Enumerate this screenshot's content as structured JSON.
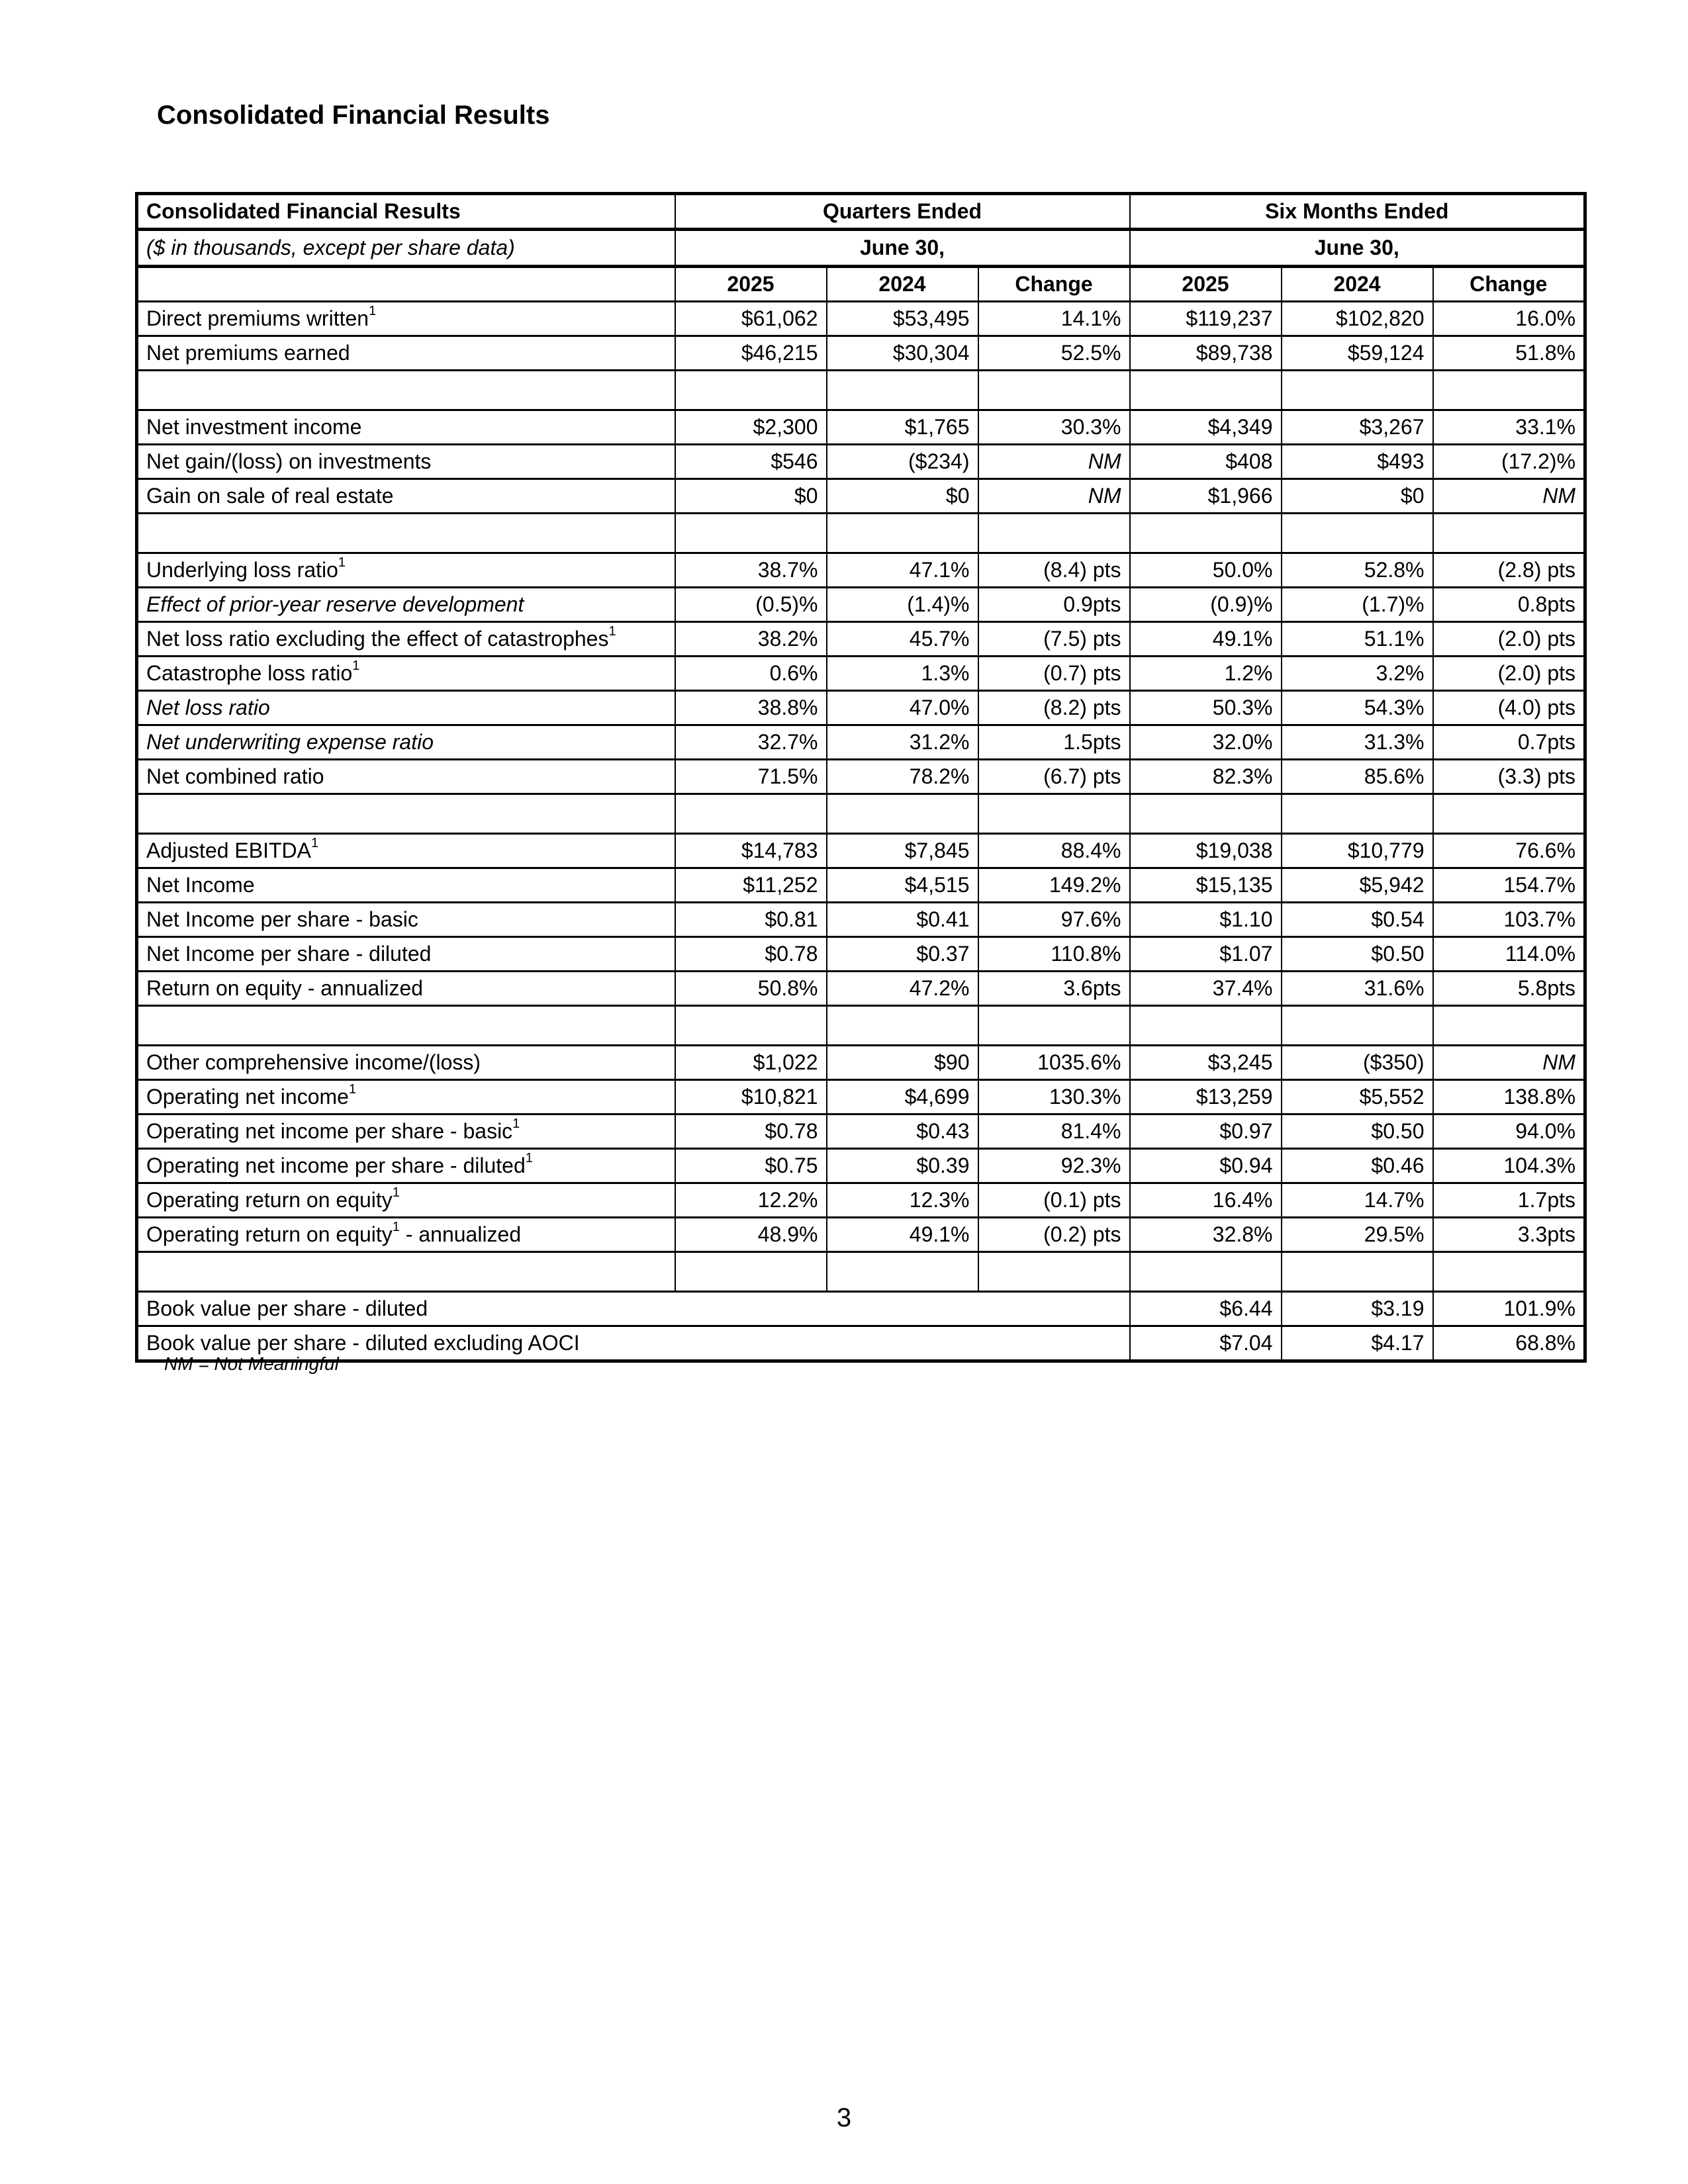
{
  "title": "Consolidated Financial Results",
  "table": {
    "header": {
      "label": "Consolidated Financial Results",
      "subtitle": "($ in thousands, except per share data)",
      "group_quarters": "Quarters Ended",
      "group_six_months": "Six Months Ended",
      "period_quarters": "June  30,",
      "period_six_months": "June  30,",
      "columns": [
        "2025",
        "2024",
        "Change",
        "2025",
        "2024",
        "Change"
      ]
    },
    "rows": [
      {
        "label": "Direct premiums written",
        "note": "1",
        "values": [
          "$61,062",
          "$53,495",
          "14.1%",
          "$119,237",
          "$102,820",
          "16.0%"
        ]
      },
      {
        "label": "Net premiums earned",
        "values": [
          "$46,215",
          "$30,304",
          "52.5%",
          "$89,738",
          "$59,124",
          "51.8%"
        ]
      },
      {
        "blank": true
      },
      {
        "label": "Net investment income",
        "values": [
          "$2,300",
          "$1,765",
          "30.3%",
          "$4,349",
          "$3,267",
          "33.1%"
        ]
      },
      {
        "label": "Net gain/(loss) on investments",
        "values": [
          "$546",
          "($234)",
          "NM",
          "$408",
          "$493",
          "(17.2)%"
        ]
      },
      {
        "label": "Gain on sale of real estate",
        "values": [
          "$0",
          "$0",
          "NM",
          "$1,966",
          "$0",
          "NM"
        ]
      },
      {
        "blank": true
      },
      {
        "label": "Underlying loss ratio",
        "note": "1",
        "values": [
          "38.7%",
          "47.1%",
          "(8.4) pts",
          "50.0%",
          "52.8%",
          "(2.8) pts"
        ]
      },
      {
        "label": "Effect of prior-year reserve development",
        "italic": true,
        "values": [
          "(0.5)%",
          "(1.4)%",
          "0.9pts",
          "(0.9)%",
          "(1.7)%",
          "0.8pts"
        ]
      },
      {
        "label": "Net loss ratio excluding the effect of catastrophes",
        "note": "1",
        "values": [
          "38.2%",
          "45.7%",
          "(7.5) pts",
          "49.1%",
          "51.1%",
          "(2.0) pts"
        ]
      },
      {
        "label": "Catastrophe loss ratio",
        "note": "1",
        "values": [
          "0.6%",
          "1.3%",
          "(0.7) pts",
          "1.2%",
          "3.2%",
          "(2.0) pts"
        ]
      },
      {
        "label": "Net loss ratio",
        "italic": true,
        "values": [
          "38.8%",
          "47.0%",
          "(8.2) pts",
          "50.3%",
          "54.3%",
          "(4.0) pts"
        ]
      },
      {
        "label": "Net underwriting expense ratio",
        "italic": true,
        "values": [
          "32.7%",
          "31.2%",
          "1.5pts",
          "32.0%",
          "31.3%",
          "0.7pts"
        ]
      },
      {
        "label": "Net combined ratio",
        "values": [
          "71.5%",
          "78.2%",
          "(6.7) pts",
          "82.3%",
          "85.6%",
          "(3.3) pts"
        ]
      },
      {
        "blank": true
      },
      {
        "label": "Adjusted EBITDA",
        "note": "1",
        "values": [
          "$14,783",
          "$7,845",
          "88.4%",
          "$19,038",
          "$10,779",
          "76.6%"
        ]
      },
      {
        "label": "Net Income",
        "values": [
          "$11,252",
          "$4,515",
          "149.2%",
          "$15,135",
          "$5,942",
          "154.7%"
        ]
      },
      {
        "label": "Net Income per share - basic",
        "values": [
          "$0.81",
          "$0.41",
          "97.6%",
          "$1.10",
          "$0.54",
          "103.7%"
        ]
      },
      {
        "label": "Net Income per share - diluted",
        "values": [
          "$0.78",
          "$0.37",
          "110.8%",
          "$1.07",
          "$0.50",
          "114.0%"
        ]
      },
      {
        "label": "Return on equity - annualized",
        "values": [
          "50.8%",
          "47.2%",
          "3.6pts",
          "37.4%",
          "31.6%",
          "5.8pts"
        ]
      },
      {
        "blank": true
      },
      {
        "label": "Other comprehensive income/(loss)",
        "values": [
          "$1,022",
          "$90",
          "1035.6%",
          "$3,245",
          "($350)",
          "NM"
        ]
      },
      {
        "label": "Operating net income",
        "note": "1",
        "values": [
          "$10,821",
          "$4,699",
          "130.3%",
          "$13,259",
          "$5,552",
          "138.8%"
        ]
      },
      {
        "label": "Operating net income per share - basic",
        "note": "1",
        "values": [
          "$0.78",
          "$0.43",
          "81.4%",
          "$0.97",
          "$0.50",
          "94.0%"
        ]
      },
      {
        "label": "Operating net income per share - diluted",
        "note": "1",
        "values": [
          "$0.75",
          "$0.39",
          "92.3%",
          "$0.94",
          "$0.46",
          "104.3%"
        ]
      },
      {
        "label": "Operating return on equity",
        "note": "1",
        "values": [
          "12.2%",
          "12.3%",
          "(0.1) pts",
          "16.4%",
          "14.7%",
          "1.7pts"
        ]
      },
      {
        "label": "Operating return on equity",
        "note": "1",
        "suffix": " - annualized",
        "values": [
          "48.9%",
          "49.1%",
          "(0.2) pts",
          "32.8%",
          "29.5%",
          "3.3pts"
        ]
      },
      {
        "blank": true
      },
      {
        "label": "Book value per share - diluted",
        "six_months_only": true,
        "values": [
          "$6.44",
          "$3.19",
          "101.9%"
        ]
      },
      {
        "label": "Book value per share - diluted excluding AOCI",
        "six_months_only": true,
        "values": [
          "$7.04",
          "$4.17",
          "68.8%"
        ]
      }
    ]
  },
  "footnote": "NM = Not Meaningful",
  "page_number": "3"
}
